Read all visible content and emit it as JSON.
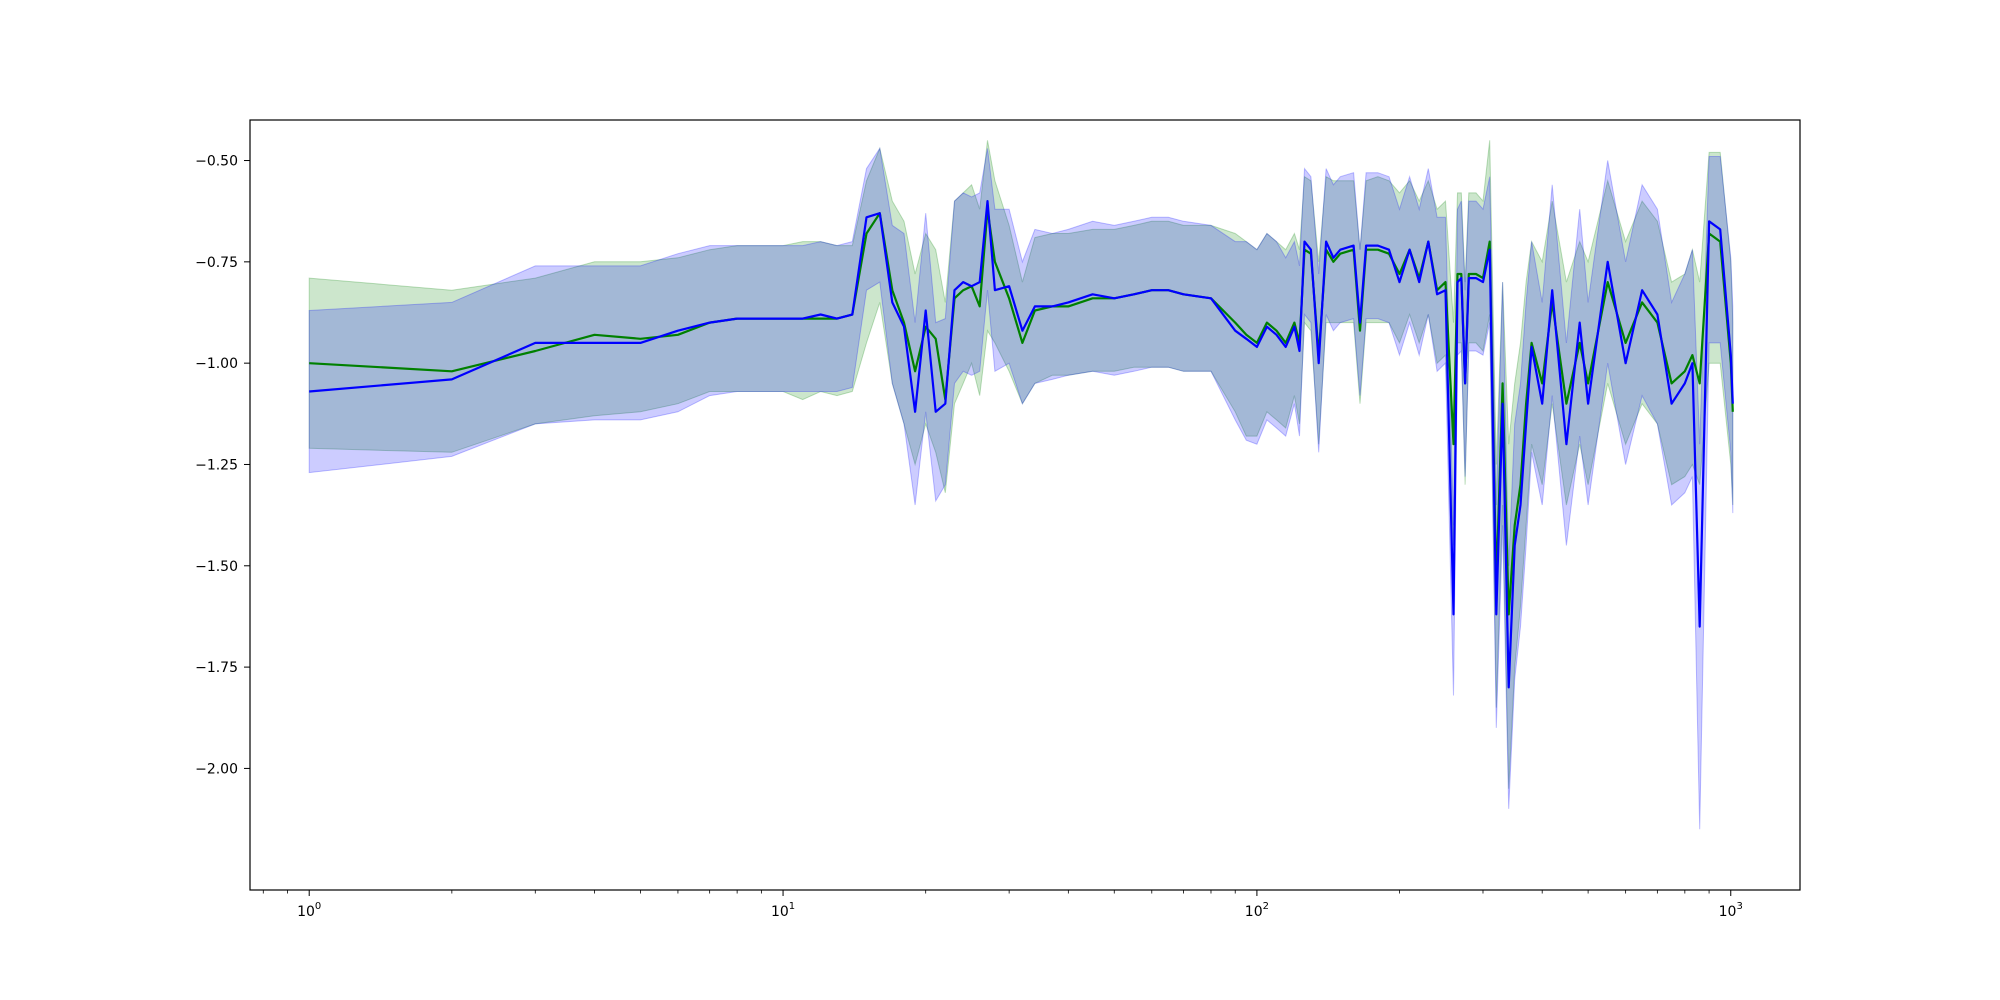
{
  "chart_data": {
    "type": "line",
    "title": "",
    "xlabel": "",
    "ylabel": "",
    "xscale": "log",
    "xlim": [
      0.75,
      1400
    ],
    "ylim": [
      -2.3,
      -0.4
    ],
    "grid": false,
    "legend": "none",
    "x_ticks": [
      {
        "base": "10",
        "exp": "0",
        "value": 1
      },
      {
        "base": "10",
        "exp": "1",
        "value": 10
      },
      {
        "base": "10",
        "exp": "2",
        "value": 100
      },
      {
        "base": "10",
        "exp": "3",
        "value": 1000
      }
    ],
    "y_ticks": [
      {
        "label": "−0.50",
        "value": -0.5
      },
      {
        "label": "−0.75",
        "value": -0.75
      },
      {
        "label": "−1.00",
        "value": -1.0
      },
      {
        "label": "−1.25",
        "value": -1.25
      },
      {
        "label": "−1.50",
        "value": -1.5
      },
      {
        "label": "−1.75",
        "value": -1.75
      },
      {
        "label": "−2.00",
        "value": -2.0
      }
    ],
    "series": [
      {
        "color": "#008000",
        "band_color": "#008000",
        "band_opacity": 0.2,
        "x": [
          1,
          2,
          3,
          4,
          5,
          6,
          7,
          8,
          9,
          10,
          11,
          12,
          13,
          14,
          15,
          16,
          17,
          18,
          19,
          20,
          21,
          22,
          23,
          24,
          25,
          26,
          27,
          28,
          30,
          32,
          34,
          37,
          40,
          45,
          50,
          55,
          60,
          65,
          70,
          80,
          90,
          95,
          100,
          105,
          110,
          115,
          120,
          123,
          126,
          130,
          135,
          140,
          145,
          150,
          160,
          165,
          170,
          180,
          190,
          200,
          210,
          220,
          230,
          240,
          250,
          260,
          265,
          270,
          275,
          280,
          290,
          300,
          310,
          320,
          330,
          340,
          350,
          360,
          370,
          380,
          400,
          420,
          450,
          480,
          500,
          550,
          600,
          650,
          700,
          750,
          800,
          830,
          860,
          900,
          950,
          1000,
          1010
        ],
        "values": [
          -1.0,
          -1.02,
          -0.97,
          -0.93,
          -0.94,
          -0.93,
          -0.9,
          -0.89,
          -0.89,
          -0.89,
          -0.89,
          -0.89,
          -0.89,
          -0.88,
          -0.68,
          -0.63,
          -0.82,
          -0.9,
          -1.02,
          -0.91,
          -0.94,
          -1.09,
          -0.84,
          -0.82,
          -0.81,
          -0.86,
          -0.62,
          -0.75,
          -0.84,
          -0.95,
          -0.87,
          -0.86,
          -0.86,
          -0.84,
          -0.84,
          -0.83,
          -0.82,
          -0.82,
          -0.83,
          -0.84,
          -0.9,
          -0.93,
          -0.95,
          -0.9,
          -0.92,
          -0.95,
          -0.9,
          -0.95,
          -0.72,
          -0.73,
          -0.98,
          -0.72,
          -0.75,
          -0.73,
          -0.72,
          -0.92,
          -0.72,
          -0.72,
          -0.73,
          -0.78,
          -0.72,
          -0.79,
          -0.7,
          -0.82,
          -0.8,
          -1.2,
          -0.78,
          -0.78,
          -1.05,
          -0.78,
          -0.78,
          -0.79,
          -0.7,
          -1.55,
          -1.05,
          -1.62,
          -1.4,
          -1.3,
          -1.1,
          -0.95,
          -1.05,
          -0.85,
          -1.1,
          -0.95,
          -1.05,
          -0.8,
          -0.95,
          -0.85,
          -0.9,
          -1.05,
          -1.02,
          -0.98,
          -1.05,
          -0.68,
          -0.7,
          -1.0,
          -1.12
        ],
        "lower": [
          -1.21,
          -1.22,
          -1.15,
          -1.13,
          -1.12,
          -1.1,
          -1.07,
          -1.07,
          -1.07,
          -1.07,
          -1.09,
          -1.07,
          -1.08,
          -1.07,
          -0.95,
          -0.85,
          -1.05,
          -1.15,
          -1.25,
          -1.15,
          -1.22,
          -1.32,
          -1.1,
          -1.05,
          -1.0,
          -1.08,
          -0.92,
          -0.95,
          -1.02,
          -1.1,
          -1.05,
          -1.03,
          -1.03,
          -1.02,
          -1.02,
          -1.01,
          -1.01,
          -1.01,
          -1.02,
          -1.02,
          -1.12,
          -1.18,
          -1.18,
          -1.12,
          -1.14,
          -1.16,
          -1.08,
          -1.15,
          -0.9,
          -0.92,
          -1.2,
          -0.9,
          -0.9,
          -0.9,
          -0.9,
          -1.1,
          -0.9,
          -0.9,
          -0.9,
          -0.95,
          -0.88,
          -0.95,
          -0.88,
          -1.0,
          -0.98,
          -1.45,
          -0.95,
          -0.95,
          -1.3,
          -0.95,
          -0.95,
          -0.97,
          -0.88,
          -1.85,
          -1.35,
          -2.05,
          -1.75,
          -1.6,
          -1.4,
          -1.2,
          -1.3,
          -1.1,
          -1.35,
          -1.2,
          -1.3,
          -1.05,
          -1.2,
          -1.1,
          -1.15,
          -1.3,
          -1.28,
          -1.25,
          -1.3,
          -1.0,
          -1.0,
          -1.25,
          -1.35
        ],
        "upper": [
          -0.79,
          -0.82,
          -0.79,
          -0.75,
          -0.75,
          -0.74,
          -0.72,
          -0.71,
          -0.71,
          -0.71,
          -0.7,
          -0.7,
          -0.71,
          -0.71,
          -0.55,
          -0.47,
          -0.6,
          -0.65,
          -0.78,
          -0.68,
          -0.72,
          -0.85,
          -0.6,
          -0.58,
          -0.56,
          -0.62,
          -0.45,
          -0.55,
          -0.66,
          -0.8,
          -0.69,
          -0.68,
          -0.68,
          -0.67,
          -0.67,
          -0.66,
          -0.65,
          -0.65,
          -0.66,
          -0.66,
          -0.68,
          -0.7,
          -0.72,
          -0.68,
          -0.7,
          -0.72,
          -0.68,
          -0.72,
          -0.54,
          -0.55,
          -0.75,
          -0.54,
          -0.55,
          -0.55,
          -0.55,
          -0.72,
          -0.55,
          -0.54,
          -0.55,
          -0.58,
          -0.55,
          -0.6,
          -0.55,
          -0.62,
          -0.6,
          -0.9,
          -0.58,
          -0.58,
          -0.8,
          -0.58,
          -0.58,
          -0.6,
          -0.45,
          -1.25,
          -0.8,
          -1.2,
          -1.05,
          -0.95,
          -0.8,
          -0.7,
          -0.75,
          -0.6,
          -0.8,
          -0.7,
          -0.75,
          -0.55,
          -0.7,
          -0.6,
          -0.65,
          -0.8,
          -0.78,
          -0.72,
          -0.8,
          -0.48,
          -0.48,
          -0.75,
          -0.9
        ]
      },
      {
        "color": "#0000ff",
        "band_color": "#0000ff",
        "band_opacity": 0.2,
        "x": [
          1,
          2,
          3,
          4,
          5,
          6,
          7,
          8,
          9,
          10,
          11,
          12,
          13,
          14,
          15,
          16,
          17,
          18,
          19,
          20,
          21,
          22,
          23,
          24,
          25,
          26,
          27,
          28,
          30,
          32,
          34,
          37,
          40,
          45,
          50,
          55,
          60,
          65,
          70,
          80,
          90,
          95,
          100,
          105,
          110,
          115,
          120,
          123,
          126,
          130,
          135,
          140,
          145,
          150,
          160,
          165,
          170,
          180,
          190,
          200,
          210,
          220,
          230,
          240,
          250,
          260,
          265,
          270,
          275,
          280,
          290,
          300,
          310,
          320,
          330,
          340,
          350,
          360,
          370,
          380,
          400,
          420,
          450,
          480,
          500,
          550,
          600,
          650,
          700,
          750,
          800,
          830,
          860,
          900,
          950,
          1000,
          1010
        ],
        "values": [
          -1.07,
          -1.04,
          -0.95,
          -0.95,
          -0.95,
          -0.92,
          -0.9,
          -0.89,
          -0.89,
          -0.89,
          -0.89,
          -0.88,
          -0.89,
          -0.88,
          -0.64,
          -0.63,
          -0.85,
          -0.91,
          -1.12,
          -0.87,
          -1.12,
          -1.1,
          -0.82,
          -0.8,
          -0.81,
          -0.8,
          -0.6,
          -0.82,
          -0.81,
          -0.92,
          -0.86,
          -0.86,
          -0.85,
          -0.83,
          -0.84,
          -0.83,
          -0.82,
          -0.82,
          -0.83,
          -0.84,
          -0.92,
          -0.94,
          -0.96,
          -0.91,
          -0.93,
          -0.96,
          -0.91,
          -0.97,
          -0.7,
          -0.72,
          -1.0,
          -0.7,
          -0.74,
          -0.72,
          -0.71,
          -0.9,
          -0.71,
          -0.71,
          -0.72,
          -0.8,
          -0.72,
          -0.8,
          -0.7,
          -0.83,
          -0.82,
          -1.62,
          -0.8,
          -0.79,
          -1.05,
          -0.79,
          -0.79,
          -0.8,
          -0.72,
          -1.62,
          -1.1,
          -1.8,
          -1.45,
          -1.35,
          -1.15,
          -0.96,
          -1.1,
          -0.82,
          -1.2,
          -0.9,
          -1.1,
          -0.75,
          -1.0,
          -0.82,
          -0.88,
          -1.1,
          -1.05,
          -1.0,
          -1.65,
          -0.65,
          -0.67,
          -0.98,
          -1.1
        ],
        "lower": [
          -1.27,
          -1.23,
          -1.15,
          -1.14,
          -1.14,
          -1.12,
          -1.08,
          -1.07,
          -1.07,
          -1.07,
          -1.07,
          -1.07,
          -1.07,
          -1.06,
          -0.82,
          -0.8,
          -1.05,
          -1.15,
          -1.35,
          -1.12,
          -1.34,
          -1.3,
          -1.05,
          -1.02,
          -1.03,
          -1.02,
          -0.82,
          -1.02,
          -1.0,
          -1.1,
          -1.05,
          -1.04,
          -1.03,
          -1.02,
          -1.03,
          -1.02,
          -1.01,
          -1.01,
          -1.02,
          -1.02,
          -1.14,
          -1.19,
          -1.2,
          -1.14,
          -1.16,
          -1.18,
          -1.1,
          -1.18,
          -0.88,
          -0.9,
          -1.22,
          -0.88,
          -0.92,
          -0.9,
          -0.89,
          -1.08,
          -0.89,
          -0.89,
          -0.9,
          -0.98,
          -0.9,
          -0.98,
          -0.88,
          -1.02,
          -1.0,
          -1.82,
          -0.98,
          -0.97,
          -1.28,
          -0.97,
          -0.97,
          -0.98,
          -0.9,
          -1.9,
          -1.4,
          -2.1,
          -1.78,
          -1.65,
          -1.45,
          -1.22,
          -1.35,
          -1.08,
          -1.45,
          -1.18,
          -1.35,
          -1.0,
          -1.25,
          -1.08,
          -1.15,
          -1.35,
          -1.32,
          -1.28,
          -2.15,
          -0.95,
          -0.95,
          -1.22,
          -1.37
        ],
        "upper": [
          -0.87,
          -0.85,
          -0.76,
          -0.76,
          -0.76,
          -0.73,
          -0.71,
          -0.71,
          -0.71,
          -0.71,
          -0.71,
          -0.7,
          -0.71,
          -0.7,
          -0.52,
          -0.47,
          -0.66,
          -0.68,
          -0.9,
          -0.63,
          -0.9,
          -0.89,
          -0.6,
          -0.58,
          -0.59,
          -0.58,
          -0.47,
          -0.62,
          -0.62,
          -0.75,
          -0.67,
          -0.68,
          -0.67,
          -0.65,
          -0.66,
          -0.65,
          -0.64,
          -0.64,
          -0.65,
          -0.66,
          -0.7,
          -0.7,
          -0.72,
          -0.68,
          -0.7,
          -0.74,
          -0.7,
          -0.76,
          -0.52,
          -0.54,
          -0.78,
          -0.52,
          -0.56,
          -0.54,
          -0.53,
          -0.72,
          -0.53,
          -0.53,
          -0.54,
          -0.62,
          -0.54,
          -0.62,
          -0.52,
          -0.64,
          -0.64,
          -1.4,
          -0.62,
          -0.6,
          -0.82,
          -0.6,
          -0.6,
          -0.62,
          -0.54,
          -1.35,
          -0.8,
          -1.5,
          -1.15,
          -1.05,
          -0.85,
          -0.7,
          -0.85,
          -0.56,
          -0.95,
          -0.62,
          -0.85,
          -0.5,
          -0.75,
          -0.56,
          -0.62,
          -0.85,
          -0.78,
          -0.72,
          -1.2,
          -0.49,
          -0.49,
          -0.74,
          -0.86
        ]
      }
    ]
  }
}
